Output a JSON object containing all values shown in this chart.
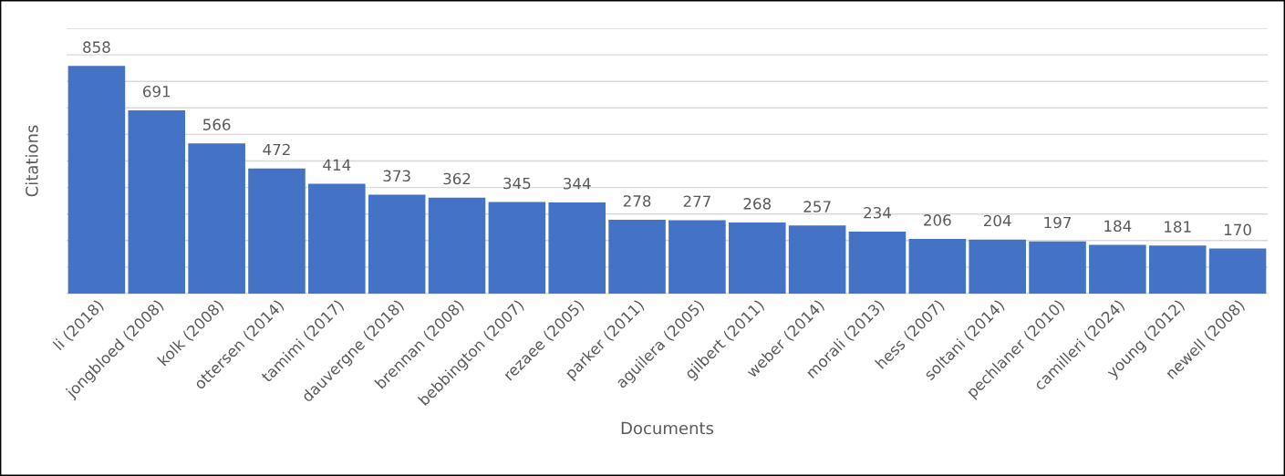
{
  "chart_data": {
    "type": "bar",
    "xlabel": "Documents",
    "ylabel": "Citations",
    "categories": [
      "li (2018)",
      "jongbloed (2008)",
      "kolk (2008)",
      "ottersen (2014)",
      "tamimi (2017)",
      "dauvergne (2018)",
      "brennan (2008)",
      "bebbington (2007)",
      "rezaee (2005)",
      "parker (2011)",
      "aguilera (2005)",
      "gilbert (2011)",
      "weber (2014)",
      "morali (2013)",
      "hess (2007)",
      "soltani (2014)",
      "pechlaner (2010)",
      "camilleri (2024)",
      "young (2012)",
      "newell (2008)"
    ],
    "values": [
      858,
      691,
      566,
      472,
      414,
      373,
      362,
      345,
      344,
      278,
      277,
      268,
      257,
      234,
      206,
      204,
      197,
      184,
      181,
      170
    ],
    "color": "#4472c4",
    "data_labels": true,
    "grid": "y",
    "ylim": [
      0,
      1000
    ],
    "yticks": [
      {
        "value": 0,
        "label": null
      },
      {
        "value": 100,
        "label": null
      },
      {
        "value": 200,
        "label": null
      },
      {
        "value": 300,
        "label": null
      },
      {
        "value": 400,
        "label": null
      },
      {
        "value": 500,
        "label": null
      },
      {
        "value": 600,
        "label": null
      },
      {
        "value": 700,
        "label": null
      },
      {
        "value": 800,
        "label": null
      },
      {
        "value": 900,
        "label": null
      },
      {
        "value": 1000,
        "label": null
      }
    ],
    "tick_labels": "x"
  }
}
